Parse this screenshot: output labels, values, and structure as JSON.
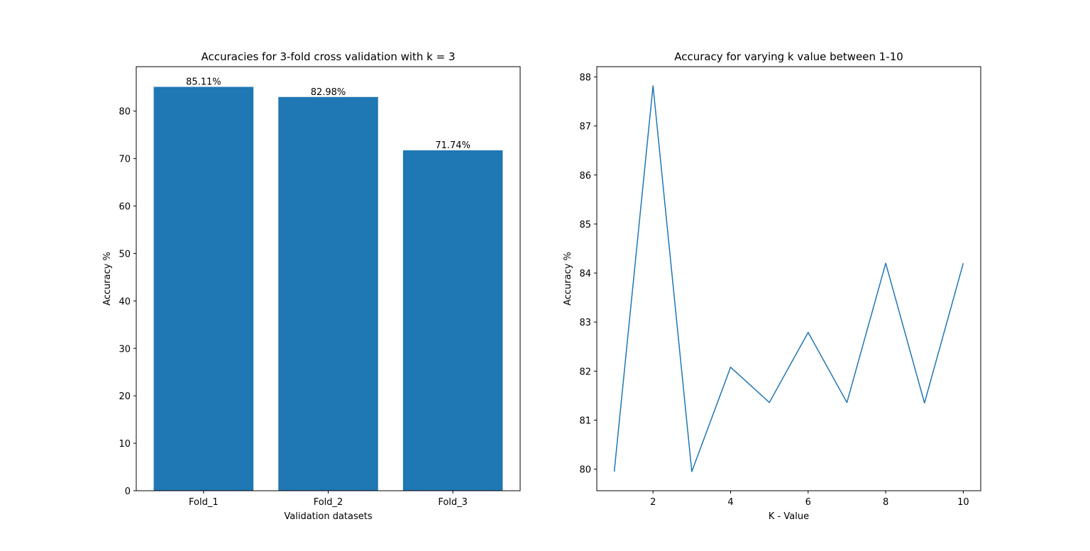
{
  "chart_data": [
    {
      "type": "bar",
      "title": "Accuracies for 3-fold cross validation with k = 3",
      "xlabel": "Validation datasets",
      "ylabel": "Accuracy %",
      "categories": [
        "Fold_1",
        "Fold_2",
        "Fold_3"
      ],
      "values": [
        85.11,
        82.98,
        71.74
      ],
      "data_labels": [
        "85.11%",
        "82.98%",
        "71.74%"
      ],
      "ylim": [
        0,
        89.37
      ],
      "yticks": [
        0,
        10,
        20,
        30,
        40,
        50,
        60,
        70,
        80
      ],
      "color": "#1f77b4",
      "grid": false
    },
    {
      "type": "line",
      "title": "Accuracy for varying k value between 1-10",
      "xlabel": "K - Value",
      "ylabel": "Accuracy %",
      "x": [
        1,
        2,
        3,
        4,
        5,
        6,
        7,
        8,
        9,
        10
      ],
      "y": [
        79.95,
        87.82,
        79.95,
        82.08,
        81.36,
        82.79,
        81.36,
        84.2,
        81.35,
        84.2
      ],
      "xlim": [
        0.55,
        10.45
      ],
      "ylim": [
        79.56,
        88.21
      ],
      "xticks": [
        2,
        4,
        6,
        8,
        10
      ],
      "yticks": [
        80,
        81,
        82,
        83,
        84,
        85,
        86,
        87,
        88
      ],
      "color": "#1f77b4",
      "grid": false
    }
  ]
}
